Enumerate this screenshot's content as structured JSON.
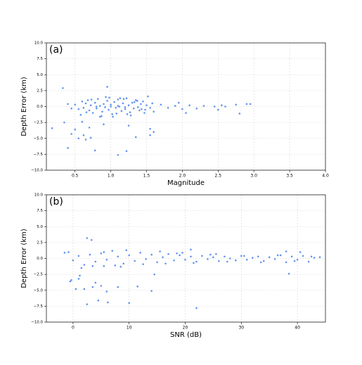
{
  "chart_data": [
    {
      "type": "scatter",
      "title": "(a)",
      "x_label": "Magnitude",
      "y_label": "Depth Error (km)",
      "grid": true,
      "xlim": [
        0.1,
        4.0
      ],
      "xticks": [
        {
          "value": 0.5,
          "label": "0.5"
        },
        {
          "value": 1.0,
          "label": "1.0"
        },
        {
          "value": 1.5,
          "label": "1.5"
        },
        {
          "value": 2.0,
          "label": "2.0"
        },
        {
          "value": 2.5,
          "label": "2.5"
        },
        {
          "value": 3.0,
          "label": "3.0"
        },
        {
          "value": 3.5,
          "label": "3.5"
        },
        {
          "value": 4.0,
          "label": "4.0"
        }
      ],
      "ylim": [
        -10,
        10
      ],
      "yticks": [
        {
          "value": -10,
          "label": "−10.0"
        },
        {
          "value": -7.5,
          "label": "−7.5"
        },
        {
          "value": -5,
          "label": "−5.0"
        },
        {
          "value": -2.5,
          "label": "−2.5"
        },
        {
          "value": 0,
          "label": "0.0"
        },
        {
          "value": 2.5,
          "label": "2.5"
        },
        {
          "value": 5,
          "label": "5.0"
        },
        {
          "value": 7.5,
          "label": "7.5"
        },
        {
          "value": 10,
          "label": "10.0"
        }
      ],
      "series": [
        {
          "color": "#6495ed",
          "x": [
            0.18,
            0.33,
            0.35,
            0.4,
            0.45,
            0.5,
            0.55,
            0.62,
            0.65,
            0.72,
            0.78,
            0.85,
            0.95,
            1.1,
            1.22,
            1.35,
            1.55,
            1.6,
            1.55,
            1.25,
            0.9,
            0.7,
            0.6,
            0.5,
            0.55,
            0.6,
            0.62,
            0.65,
            0.68,
            0.7,
            0.72,
            0.75,
            0.78,
            0.8,
            0.82,
            0.85,
            0.88,
            0.9,
            0.92,
            0.95,
            0.97,
            1.0,
            1.02,
            1.05,
            1.07,
            1.1,
            1.12,
            1.15,
            1.17,
            1.2,
            1.22,
            1.25,
            1.27,
            1.3,
            1.32,
            1.35,
            1.38,
            1.4,
            1.42,
            1.45,
            1.48,
            1.5,
            1.52,
            1.55,
            1.58,
            1.6,
            0.58,
            0.73,
            0.87,
            0.98,
            1.08,
            1.18,
            1.28,
            1.37,
            1.47,
            0.66,
            0.93,
            1.03,
            1.13,
            1.23,
            1.33,
            1.43,
            1.0,
            1.1,
            1.2,
            0.8,
            0.4,
            0.45,
            1.7,
            1.8,
            1.9,
            2.0,
            2.1,
            2.2,
            2.3,
            2.45,
            2.5,
            2.55,
            2.6,
            2.75,
            2.8,
            2.9,
            2.95,
            2.05,
            1.95
          ],
          "values": [
            -3.4,
            2.9,
            -2.5,
            -6.5,
            -4.3,
            -3.6,
            -5.0,
            -4.5,
            -5.2,
            -4.9,
            -6.9,
            -1.6,
            3.1,
            -7.6,
            -7.0,
            -4.8,
            -4.5,
            -4.0,
            -3.5,
            -3.0,
            -2.8,
            -3.3,
            -2.4,
            0.3,
            -0.4,
            0.8,
            -0.2,
            0.5,
            1.0,
            -0.6,
            0.2,
            -1.0,
            0.6,
            -0.3,
            1.2,
            0.1,
            -0.8,
            0.4,
            -0.1,
            0.9,
            -0.5,
            0.3,
            -1.2,
            0.7,
            -0.2,
            1.1,
            0.0,
            -0.7,
            0.5,
            -0.4,
            1.3,
            0.2,
            -0.9,
            0.6,
            -0.3,
            1.0,
            -0.1,
            -0.6,
            0.4,
            0.8,
            -0.5,
            0.2,
            1.6,
            -0.2,
            0.5,
            -0.8,
            -1.3,
            1.1,
            -1.5,
            1.4,
            -1.1,
            1.2,
            -1.4,
            0.9,
            -1.0,
            -0.9,
            1.5,
            -1.6,
            1.3,
            -1.2,
            0.7,
            -0.4,
            0.0,
            0.1,
            -0.1,
            0.0,
            0.4,
            -0.3,
            0.3,
            -0.2,
            0.1,
            -0.4,
            0.2,
            -0.3,
            0.1,
            0.0,
            -0.5,
            0.2,
            0.0,
            0.3,
            -1.1,
            0.4,
            0.4,
            -1.0,
            0.6
          ]
        }
      ]
    },
    {
      "type": "scatter",
      "title": "(b)",
      "x_label": "SNR (dB)",
      "y_label": "Depth Error (km)",
      "grid": true,
      "xlim": [
        -4.75,
        45
      ],
      "xticks": [
        0,
        10,
        20,
        30,
        40
      ],
      "ylim": [
        -10,
        10
      ],
      "yticks": [
        {
          "value": -10,
          "label": "−10.0"
        },
        {
          "value": -7.5,
          "label": "−7.5"
        },
        {
          "value": -5,
          "label": "−5.0"
        },
        {
          "value": -2.5,
          "label": "−2.5"
        },
        {
          "value": 0,
          "label": "0.0"
        },
        {
          "value": 2.5,
          "label": "2.5"
        },
        {
          "value": 5,
          "label": "5.0"
        },
        {
          "value": 7.5,
          "label": "7.5"
        },
        {
          "value": 10,
          "label": "10.0"
        }
      ],
      "series": [
        {
          "color": "#6495ed",
          "x": [
            -1.5,
            -0.8,
            -0.5,
            -0.3,
            0.5,
            1,
            1.2,
            2,
            2.5,
            2.5,
            3.3,
            3.5,
            4,
            4.5,
            5,
            5.5,
            6,
            6.2,
            8,
            10,
            11.5,
            14,
            14.5,
            22,
            38.5,
            38,
            40.5,
            21,
            0,
            1,
            2,
            3,
            4,
            5,
            6,
            7,
            8,
            9,
            10,
            11,
            12,
            13,
            14,
            15,
            16,
            17,
            18,
            19,
            20,
            21,
            22,
            23,
            24,
            25,
            26,
            27,
            28,
            29,
            30,
            31,
            32,
            33,
            34,
            35,
            36,
            37,
            38,
            39,
            40,
            41,
            42,
            43,
            44,
            1.5,
            3.5,
            5.5,
            7.5,
            9.5,
            12.5,
            15.5,
            18.5,
            21.5,
            24.5,
            27.5,
            30.5,
            33.5,
            36.5,
            39.5,
            42.5,
            8.5,
            16.5,
            19.5,
            25.5
          ],
          "values": [
            0.9,
            1.0,
            -3.6,
            -3.4,
            -4.8,
            -3.2,
            -2.7,
            -4.8,
            -7.2,
            3.2,
            2.9,
            -4.5,
            -3.8,
            -6.6,
            -4.3,
            -1.2,
            -5.2,
            -6.9,
            -4.5,
            -7.0,
            -4.4,
            -5.1,
            -2.5,
            -7.8,
            -2.4,
            1.1,
            1.0,
            1.4,
            -0.3,
            0.4,
            -1.0,
            0.6,
            -0.5,
            0.8,
            -0.2,
            1.2,
            0.3,
            -0.8,
            0.5,
            -0.4,
            0.9,
            -0.1,
            0.6,
            -0.6,
            0.2,
            0.7,
            -0.3,
            0.5,
            -0.2,
            0.3,
            -0.5,
            0.4,
            -0.1,
            0.2,
            -0.4,
            0.3,
            0.0,
            -0.3,
            0.4,
            -0.2,
            0.1,
            0.3,
            -0.4,
            0.2,
            -0.1,
            0.5,
            -0.6,
            0.3,
            -0.2,
            0.4,
            -0.5,
            0.1,
            0.2,
            -1.5,
            -1.2,
            1.0,
            -1.1,
            1.3,
            -0.9,
            1.1,
            0.8,
            -0.7,
            0.6,
            -0.5,
            0.4,
            -0.6,
            0.5,
            -0.4,
            0.3,
            -1.3,
            -0.8,
            0.9,
            0.7
          ]
        }
      ]
    }
  ]
}
